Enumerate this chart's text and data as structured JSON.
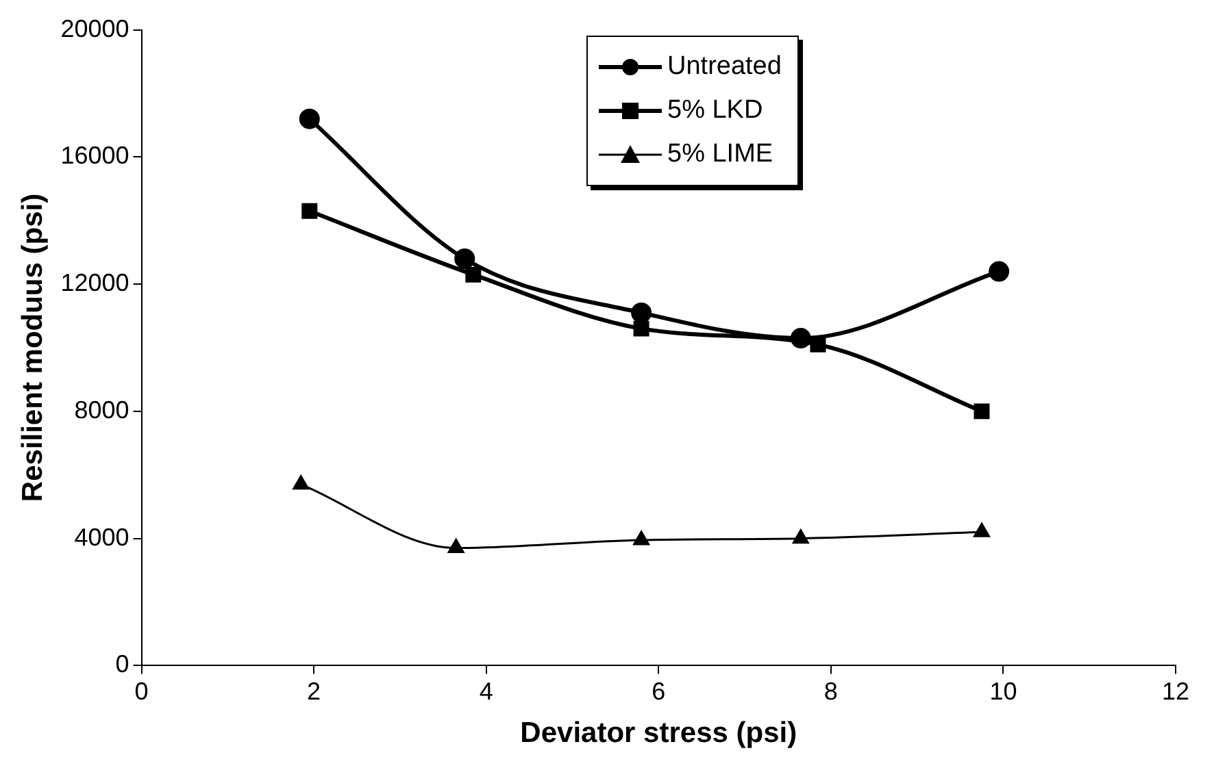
{
  "chart_data": {
    "type": "line",
    "xlabel": "Deviator stress (psi)",
    "ylabel": "Resilient moduus (psi)",
    "xlim": [
      0,
      12
    ],
    "xticks": [
      0,
      2,
      4,
      6,
      8,
      10,
      12
    ],
    "ylim": [
      0,
      20000
    ],
    "yticks": [
      0,
      4000,
      8000,
      12000,
      16000,
      20000
    ],
    "grid": false,
    "legend": "top",
    "series": [
      {
        "name": "Untreated",
        "color": "#000000",
        "marker": "circle",
        "x": [
          1.95,
          3.75,
          5.8,
          7.65,
          9.95
        ],
        "values": [
          17200,
          12800,
          11100,
          10300,
          12400
        ]
      },
      {
        "name": "5% LKD",
        "color": "#000000",
        "marker": "square",
        "x": [
          1.95,
          3.85,
          5.8,
          7.85,
          9.75
        ],
        "values": [
          14300,
          12300,
          10600,
          10100,
          8000
        ]
      },
      {
        "name": "5% LIME",
        "color": "#000000",
        "marker": "triangle",
        "x": [
          1.85,
          3.65,
          5.8,
          7.65,
          9.75
        ],
        "values": [
          5700,
          3700,
          3950,
          4000,
          4200
        ]
      }
    ]
  }
}
